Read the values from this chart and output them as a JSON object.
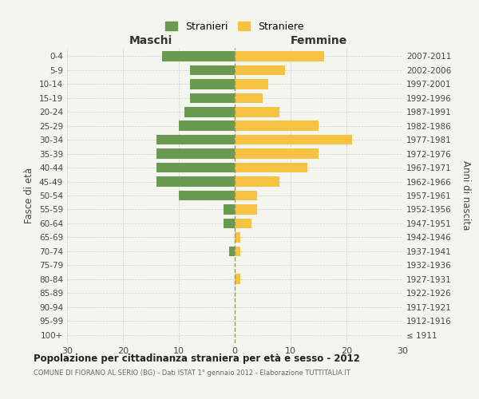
{
  "age_groups": [
    "100+",
    "95-99",
    "90-94",
    "85-89",
    "80-84",
    "75-79",
    "70-74",
    "65-69",
    "60-64",
    "55-59",
    "50-54",
    "45-49",
    "40-44",
    "35-39",
    "30-34",
    "25-29",
    "20-24",
    "15-19",
    "10-14",
    "5-9",
    "0-4"
  ],
  "birth_years": [
    "≤ 1911",
    "1912-1916",
    "1917-1921",
    "1922-1926",
    "1927-1931",
    "1932-1936",
    "1937-1941",
    "1942-1946",
    "1947-1951",
    "1952-1956",
    "1957-1961",
    "1962-1966",
    "1967-1971",
    "1972-1976",
    "1977-1981",
    "1982-1986",
    "1987-1991",
    "1992-1996",
    "1997-2001",
    "2002-2006",
    "2007-2011"
  ],
  "maschi": [
    0,
    0,
    0,
    0,
    0,
    0,
    1,
    0,
    2,
    2,
    10,
    14,
    14,
    14,
    14,
    10,
    9,
    8,
    8,
    8,
    13
  ],
  "femmine": [
    0,
    0,
    0,
    0,
    1,
    0,
    1,
    1,
    3,
    4,
    4,
    8,
    13,
    15,
    21,
    15,
    8,
    5,
    6,
    9,
    16
  ],
  "color_maschi": "#6a9a50",
  "color_femmine": "#f5c242",
  "title": "Popolazione per cittadinanza straniera per età e sesso - 2012",
  "subtitle": "COMUNE DI FIORANO AL SERIO (BG) - Dati ISTAT 1° gennaio 2012 - Elaborazione TUTTITALIA.IT",
  "xlabel_left": "Maschi",
  "xlabel_right": "Femmine",
  "ylabel_left": "Fasce di età",
  "ylabel_right": "Anni di nascita",
  "legend_maschi": "Stranieri",
  "legend_femmine": "Straniere",
  "xlim": 30,
  "xticks": [
    -30,
    -20,
    -10,
    0,
    10,
    20,
    30
  ],
  "xtick_labels": [
    "30",
    "20",
    "10",
    "0",
    "10",
    "20",
    "30"
  ],
  "background_color": "#f5f5f0",
  "grid_color": "#cccccc",
  "center_line_color": "#999966"
}
